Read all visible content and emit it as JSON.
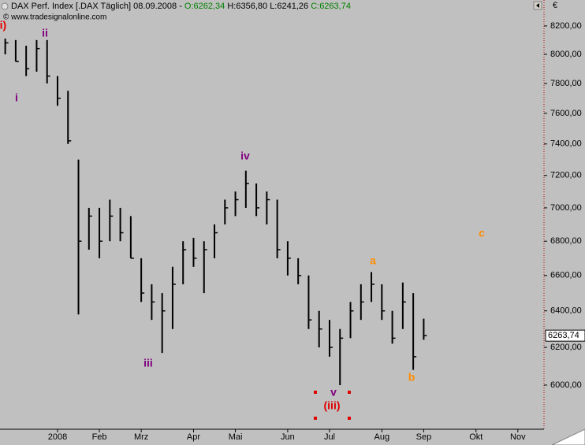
{
  "chart_data": {
    "type": "hlc",
    "title": "DAX Perf. Index [.DAX  Täglich] 08.09.2008 - ",
    "quote": [
      {
        "text": "O:6262,34",
        "color": "#008000"
      },
      {
        "text": "H:6356,80",
        "color": "#000000"
      },
      {
        "text": "L:6241,26",
        "color": "#000000"
      },
      {
        "text": "C:6263,74",
        "color": "#008000"
      }
    ],
    "watermark": "© www.tradesignalonline.com",
    "y_unit": "€",
    "log_scale": true,
    "color": "#000000",
    "categories": [
      null,
      null,
      null,
      null,
      null,
      null,
      null,
      null,
      null,
      null,
      null,
      null,
      null,
      null,
      null,
      null,
      null,
      null,
      null,
      null,
      null,
      null,
      null,
      null,
      null,
      null,
      null,
      null,
      null,
      null,
      null,
      null,
      null,
      null,
      null,
      null,
      null,
      null,
      null,
      null,
      null,
      null,
      null,
      null,
      null,
      null,
      null,
      null,
      null,
      null,
      null,
      null
    ],
    "high": [
      8110,
      8100,
      8060,
      8100,
      8100,
      7850,
      7750,
      7300,
      7000,
      7000,
      7050,
      7000,
      6950,
      6700,
      6550,
      6500,
      6650,
      6800,
      6820,
      6800,
      6900,
      7050,
      7100,
      7230,
      7150,
      7100,
      7050,
      6800,
      6700,
      6600,
      6400,
      6350,
      6300,
      6450,
      6550,
      6620,
      6550,
      6400,
      6560,
      6500,
      6356.8,
      null,
      null,
      null,
      null,
      null,
      null,
      null,
      null,
      null,
      null,
      null
    ],
    "low": [
      8000,
      7950,
      7850,
      7880,
      7800,
      7650,
      7400,
      6380,
      6750,
      6700,
      6800,
      6800,
      6700,
      6450,
      6350,
      6170,
      6300,
      6550,
      6650,
      6500,
      6700,
      6900,
      6950,
      7000,
      6950,
      6900,
      6700,
      6600,
      6550,
      6300,
      6200,
      6150,
      6000,
      6250,
      6350,
      6450,
      6350,
      6220,
      6300,
      6080,
      6241.26,
      null,
      null,
      null,
      null,
      null,
      null,
      null,
      null,
      null,
      null,
      null
    ],
    "close": [
      8080,
      7950,
      7900,
      8040,
      7850,
      7700,
      7420,
      6800,
      6950,
      6800,
      6950,
      6850,
      6700,
      6500,
      6450,
      6400,
      6550,
      6750,
      6700,
      6750,
      6850,
      7000,
      7050,
      7150,
      7000,
      7050,
      6750,
      6700,
      6600,
      6350,
      6300,
      6200,
      6250,
      6400,
      6450,
      6550,
      6400,
      6250,
      6450,
      6150,
      6263.74,
      null,
      null,
      null,
      null,
      null,
      null,
      null,
      null,
      null,
      null,
      null
    ],
    "last_value_label": "6263,74",
    "ylim": [
      5774,
      8387
    ],
    "yticks": [
      {
        "value": 6000,
        "label": "6000,00"
      },
      {
        "value": 6200,
        "label": "6200,00"
      },
      {
        "value": 6400,
        "label": "6400,00"
      },
      {
        "value": 6600,
        "label": "6600,00"
      },
      {
        "value": 6800,
        "label": "6800,00"
      },
      {
        "value": 7000,
        "label": "7000,00"
      },
      {
        "value": 7200,
        "label": "7200,00"
      },
      {
        "value": 7400,
        "label": "7400,00"
      },
      {
        "value": 7600,
        "label": "7600,00"
      },
      {
        "value": 7800,
        "label": "7800,00"
      },
      {
        "value": 8000,
        "label": "8000,00"
      },
      {
        "value": 8200,
        "label": "8200,00"
      }
    ],
    "xticks": [
      {
        "value": 5,
        "label": "2008"
      },
      {
        "value": 9,
        "label": "Feb"
      },
      {
        "value": 13,
        "label": "Mrz"
      },
      {
        "value": 18,
        "label": "Apr"
      },
      {
        "value": 22,
        "label": "Mai"
      },
      {
        "value": 27,
        "label": "Jun"
      },
      {
        "value": 31,
        "label": "Jul"
      },
      {
        "value": 36,
        "label": "Aug"
      },
      {
        "value": 40,
        "label": "Sep"
      },
      {
        "value": 45,
        "label": "Okt"
      },
      {
        "value": 49,
        "label": "Nov"
      }
    ],
    "annotations": [
      {
        "text": "(i)",
        "color": "#e00000"
      },
      {
        "text": "ii",
        "color": "#800080"
      },
      {
        "text": "i",
        "color": "#800080"
      },
      {
        "text": "iii",
        "color": "#800080"
      },
      {
        "text": "iv",
        "color": "#800080"
      },
      {
        "text": "v",
        "color": "#800080"
      },
      {
        "text": "(iii)",
        "color": "#e00000"
      },
      {
        "text": "a",
        "color": "#ff8c00"
      },
      {
        "text": "b",
        "color": "#ff8c00"
      },
      {
        "text": "c",
        "color": "#ff8c00"
      }
    ]
  }
}
